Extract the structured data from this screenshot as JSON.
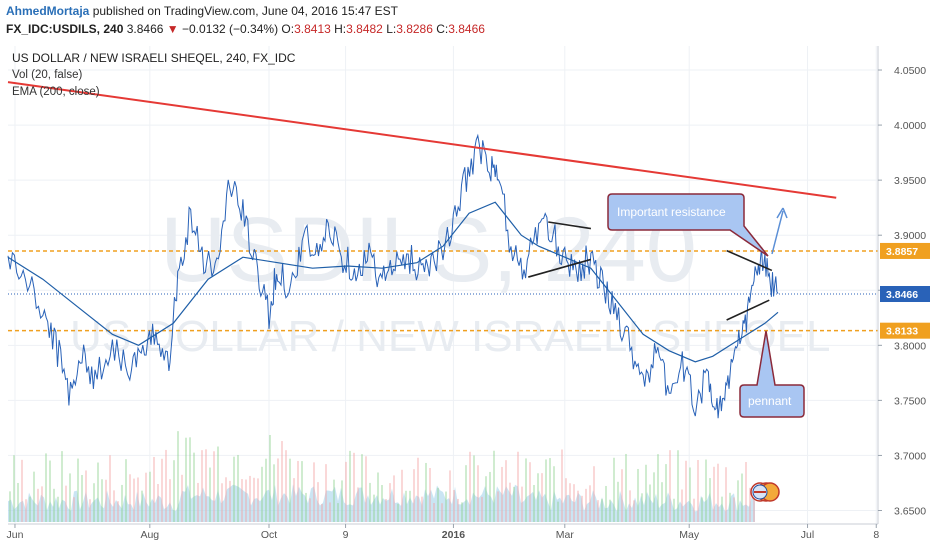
{
  "header": {
    "author": "AhmedMortaja",
    "published_text": "published on TradingView.com, June 04, 2016 15:47 EST",
    "symbol": "FX_IDC:USDILS, 240",
    "last": "3.8466",
    "arrow": "▼",
    "change": "−0.0132 (−0.34%)",
    "o_label": "O:",
    "o_value": "3.8413",
    "h_label": "H:",
    "h_value": "3.8482",
    "l_label": "L:",
    "l_value": "3.8286",
    "c_label": "C:",
    "c_value": "3.8466"
  },
  "legend": {
    "title": "US DOLLAR / NEW ISRAELI SHEQEL, 240, FX_IDC",
    "vol": "Vol (20, false)",
    "ema": "EMA (200, close)"
  },
  "watermark": {
    "big": "USDILS, 240",
    "small": "US DOLLAR / NEW ISRAELI SHEQEL"
  },
  "annotations": {
    "resistance": "Important resistance",
    "pennant": "pennant"
  },
  "colors": {
    "price": "#2962b8",
    "ema": "#1f5fa8",
    "trend": "#e53935",
    "level": "#f0a020",
    "last": "#2962b8",
    "callout_fill": "#a9c6f2",
    "callout_stroke": "#8b2a3a",
    "vol_up": "#8fd18f",
    "vol_down": "#f4a3a3",
    "vol_area": "#9fd0ea"
  },
  "chart_data": {
    "type": "line",
    "title": "US DOLLAR / NEW ISRAELI SHEQEL, 240, FX_IDC",
    "x_ticks": [
      "Jun",
      "Aug",
      "Oct",
      "9",
      "2016",
      "Mar",
      "May",
      "Jul",
      "8"
    ],
    "y_ticks": [
      "4.0500",
      "4.0000",
      "3.9500",
      "3.9000",
      "3.8500",
      "3.8000",
      "3.7500",
      "3.7000",
      "3.6500"
    ],
    "ylim": [
      3.645,
      4.07
    ],
    "price_labels": [
      {
        "text": "3.8857",
        "value": 3.8857,
        "style": "level"
      },
      {
        "text": "3.8466",
        "value": 3.8466,
        "style": "last"
      },
      {
        "text": "3.8133",
        "value": 3.8133,
        "style": "level"
      }
    ],
    "horizontal_levels": [
      3.8857,
      3.8133
    ],
    "last_price": 3.8466,
    "price_series": {
      "name": "USDILS",
      "x": [
        0.0,
        0.02,
        0.04,
        0.055,
        0.07,
        0.085,
        0.1,
        0.12,
        0.14,
        0.155,
        0.17,
        0.185,
        0.195,
        0.21,
        0.225,
        0.24,
        0.255,
        0.27,
        0.285,
        0.3,
        0.31,
        0.325,
        0.34,
        0.355,
        0.37,
        0.385,
        0.4,
        0.415,
        0.43,
        0.445,
        0.46,
        0.475,
        0.49,
        0.51,
        0.525,
        0.54,
        0.555,
        0.565,
        0.58,
        0.595,
        0.61,
        0.625,
        0.64,
        0.655,
        0.67,
        0.685,
        0.7,
        0.715,
        0.73,
        0.745,
        0.76,
        0.775,
        0.79,
        0.805,
        0.815,
        0.825,
        0.835,
        0.845,
        0.855,
        0.865,
        0.875,
        0.885
      ],
      "values": [
        3.88,
        3.86,
        3.83,
        3.8,
        3.76,
        3.79,
        3.77,
        3.8,
        3.78,
        3.79,
        3.81,
        3.79,
        3.86,
        3.92,
        3.88,
        3.87,
        3.95,
        3.92,
        3.87,
        3.83,
        3.87,
        3.85,
        3.9,
        3.88,
        3.91,
        3.88,
        3.87,
        3.88,
        3.86,
        3.87,
        3.88,
        3.87,
        3.88,
        3.9,
        3.95,
        3.98,
        3.96,
        3.95,
        3.88,
        3.87,
        3.91,
        3.9,
        3.88,
        3.87,
        3.88,
        3.85,
        3.83,
        3.8,
        3.77,
        3.79,
        3.76,
        3.78,
        3.75,
        3.77,
        3.74,
        3.76,
        3.79,
        3.81,
        3.85,
        3.88,
        3.86,
        3.847
      ]
    },
    "ema_series": {
      "name": "EMA (200, close)",
      "x": [
        0.0,
        0.04,
        0.08,
        0.12,
        0.15,
        0.19,
        0.23,
        0.27,
        0.31,
        0.35,
        0.39,
        0.43,
        0.47,
        0.5,
        0.53,
        0.56,
        0.59,
        0.61,
        0.64,
        0.67,
        0.7,
        0.73,
        0.76,
        0.79,
        0.81,
        0.83,
        0.85,
        0.87,
        0.885
      ],
      "values": [
        3.88,
        3.86,
        3.835,
        3.81,
        3.8,
        3.82,
        3.86,
        3.88,
        3.875,
        3.87,
        3.872,
        3.87,
        3.875,
        3.89,
        3.92,
        3.93,
        3.9,
        3.89,
        3.88,
        3.87,
        3.84,
        3.81,
        3.795,
        3.785,
        3.79,
        3.8,
        3.81,
        3.82,
        3.83
      ]
    },
    "trendline": {
      "x": [
        0.0,
        0.952
      ],
      "values": [
        4.039,
        3.934
      ]
    },
    "pennant_lines": [
      {
        "x": [
          0.598,
          0.67
        ],
        "values": [
          3.862,
          3.878
        ]
      },
      {
        "x": [
          0.621,
          0.67
        ],
        "values": [
          3.912,
          3.906
        ]
      },
      {
        "x": [
          0.826,
          0.878
        ],
        "values": [
          3.886,
          3.868
        ]
      },
      {
        "x": [
          0.826,
          0.875
        ],
        "values": [
          3.823,
          3.841
        ]
      }
    ]
  }
}
